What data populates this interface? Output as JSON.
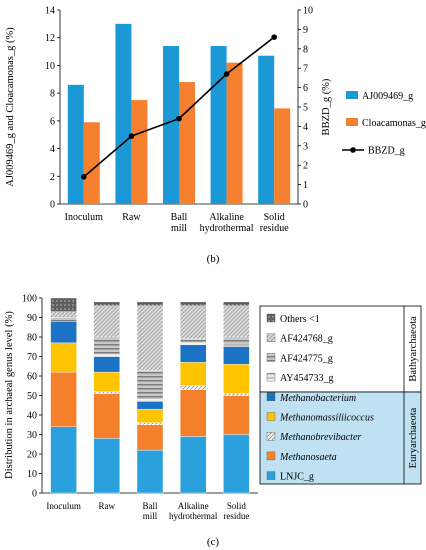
{
  "panel_b": {
    "caption": "(b)",
    "y_left_label": "AJ009469_g and Cloacamonas_g (%)",
    "y_right_label": "BBZD_g (%)"
  },
  "panel_c": {
    "caption": "(c)",
    "y_label": "Distribution in archaeal genus level (%)",
    "group_labels": [
      "Bathyarchaeota",
      "Euryarchaeota"
    ]
  },
  "chart_data": [
    {
      "type": "bar",
      "categories": [
        "Inoculum",
        "Raw",
        "Ball mill",
        "Alkaline hydrothermal",
        "Solid residue"
      ],
      "series": [
        {
          "name": "AJ009469_g",
          "axis": "left",
          "type": "bar",
          "color": "#1a99d6",
          "values": [
            8.6,
            13.0,
            11.4,
            11.4,
            10.7
          ]
        },
        {
          "name": "Cloacamonas_g",
          "axis": "left",
          "type": "bar",
          "color": "#f58030",
          "values": [
            5.9,
            7.5,
            8.8,
            10.2,
            6.9
          ]
        },
        {
          "name": "BBZD_g",
          "axis": "right",
          "type": "line",
          "color": "#000000",
          "values": [
            1.4,
            3.5,
            4.4,
            6.7,
            8.6
          ]
        }
      ],
      "ylim": [
        0,
        14
      ],
      "yticks": [
        0,
        2,
        4,
        6,
        8,
        10,
        12,
        14
      ],
      "y2lim": [
        0,
        10
      ],
      "y2ticks": [
        0,
        1,
        2,
        3,
        4,
        5,
        6,
        7,
        8,
        9,
        10
      ],
      "ylabel": "AJ009469_g and Cloacamonas_g (%)",
      "y2label": "BBZD_g (%)",
      "legend_placement": "right",
      "grid": false
    },
    {
      "type": "bar",
      "stacked": true,
      "categories": [
        "Inoculum",
        "Raw",
        "Ball mill",
        "Alkaline hydrothermal",
        "Solid residue"
      ],
      "series": [
        {
          "name": "LNJC_g",
          "color": "#2aa0dc",
          "values": [
            34,
            28,
            22,
            29,
            30
          ]
        },
        {
          "name": "Methanosaeta",
          "color": "#f4802c",
          "values": [
            28,
            23,
            13,
            24,
            20
          ]
        },
        {
          "name": "Methanobrevibacter",
          "color": "#e6e6e6",
          "values": [
            0,
            1,
            1,
            2,
            1
          ]
        },
        {
          "name": "Methanomassiliicoccus",
          "color": "#ffc400",
          "values": [
            15,
            10,
            7,
            12,
            15
          ]
        },
        {
          "name": "Methanobacterium",
          "color": "#1a73c4",
          "values": [
            11,
            8,
            4,
            9,
            9
          ]
        },
        {
          "name": "AY454733_g",
          "color": "#dcdcdc",
          "values": [
            0,
            1,
            1,
            1,
            1
          ]
        },
        {
          "name": "AF424775_g",
          "color": "#a8a8a8",
          "values": [
            2,
            9,
            15,
            2,
            4
          ]
        },
        {
          "name": "AF424768_g",
          "color": "#d8d8d8",
          "values": [
            3,
            16,
            33,
            17,
            16
          ]
        },
        {
          "name": "Others <1",
          "color": "#6d6d6d",
          "values": [
            7,
            2,
            2,
            2,
            2
          ]
        }
      ],
      "ylim": [
        0,
        100
      ],
      "yticks": [
        0,
        10,
        20,
        30,
        40,
        50,
        60,
        70,
        80,
        90,
        100
      ],
      "ylabel": "Distribution in archaeal genus level (%)",
      "legend_placement": "right",
      "legend_groups": [
        {
          "label": "Bathyarchaeota",
          "members": [
            "Others <1",
            "AF424768_g",
            "AF424775_g",
            "AY454733_g"
          ]
        },
        {
          "label": "Euryarchaeota",
          "members": [
            "Methanobacterium",
            "Methanomassiliicoccus",
            "Methanobrevibacter",
            "Methanosaeta",
            "LNJC_g"
          ]
        }
      ],
      "legend_order": [
        "Others <1",
        "AF424768_g",
        "AF424775_g",
        "AY454733_g",
        "Methanobacterium",
        "Methanomassiliicoccus",
        "Methanobrevibacter",
        "Methanosaeta",
        "LNJC_g"
      ],
      "legend_italic": [
        "Methanobacterium",
        "Methanomassiliicoccus",
        "Methanobrevibacter",
        "Methanosaeta"
      ],
      "grid": false
    }
  ]
}
